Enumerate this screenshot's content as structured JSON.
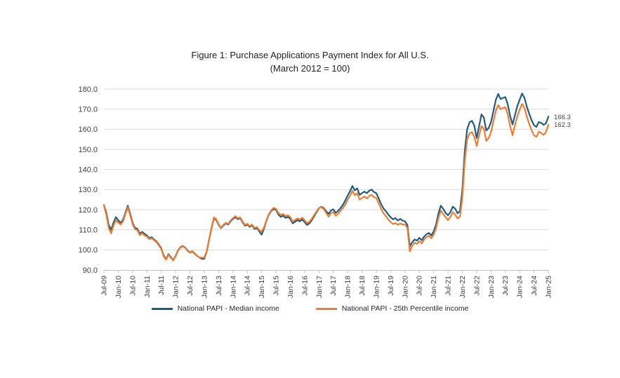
{
  "chart": {
    "title": "Figure 1: Purchase Applications Payment Index for All U.S.",
    "subtitle": "(March 2012 = 100)"
  },
  "legend": {
    "median_label": "National PAPI - Median income",
    "p25_label": "National PAPI - 25th Percentile income"
  },
  "chart_data": {
    "type": "line",
    "title": "Figure 1: Purchase Applications Payment Index for All U.S.",
    "subtitle": "(March 2012 = 100)",
    "x_unit": "monthly, Jul-2009 through Jan-2025",
    "x_tick_labels": [
      "Jul-09",
      "Jan-10",
      "Jul-10",
      "Jan-11",
      "Jul-11",
      "Jan-12",
      "Jul-12",
      "Jan-13",
      "Jul-13",
      "Jan-14",
      "Jul-14",
      "Jan-15",
      "Jul-15",
      "Jan-16",
      "Jul-16",
      "Jan-17",
      "Jul-17",
      "Jan-18",
      "Jul-18",
      "Jan-19",
      "Jul-19",
      "Jan-20",
      "Jul-20",
      "Jan-21",
      "Jul-21",
      "Jan-22",
      "Jul-22",
      "Jan-23",
      "Jul-23",
      "Jan-24",
      "Jul-24",
      "Jan-25"
    ],
    "y_tick_labels": [
      "180.0",
      "170.0",
      "160.0",
      "150.0",
      "140.0",
      "130.0",
      "120.0",
      "110.0",
      "100.0",
      "90.0"
    ],
    "ylim": [
      90,
      180
    ],
    "grid": "horizontal",
    "legend_position": "bottom",
    "axis_text_color": "#404040",
    "grid_color": "#D9D9D9",
    "axis_line_color": "#BFBFBF",
    "series": [
      {
        "name": "National PAPI - Median income",
        "color": "#1F5C80",
        "end_label": "166.3",
        "values": [
          122.3,
          118.5,
          112.5,
          110.0,
          113.5,
          116.3,
          114.8,
          113.4,
          115.0,
          118.5,
          122.0,
          118.0,
          113.5,
          111.0,
          110.5,
          108.0,
          109.0,
          108.0,
          107.2,
          105.8,
          106.3,
          105.2,
          104.2,
          102.6,
          100.8,
          97.2,
          95.4,
          97.9,
          96.4,
          94.9,
          97.0,
          99.8,
          101.3,
          102.0,
          101.2,
          99.7,
          98.8,
          99.3,
          98.2,
          97.0,
          96.2,
          95.5,
          95.6,
          99.0,
          105.0,
          110.5,
          115.8,
          114.8,
          112.5,
          110.8,
          112.2,
          113.2,
          112.6,
          114.2,
          115.4,
          116.2,
          115.3,
          115.8,
          113.8,
          112.0,
          112.6,
          111.4,
          112.2,
          110.4,
          110.9,
          109.2,
          107.6,
          110.6,
          114.5,
          117.5,
          119.3,
          120.3,
          120.0,
          117.6,
          116.4,
          117.0,
          115.9,
          116.4,
          115.4,
          113.2,
          114.0,
          114.8,
          114.2,
          115.1,
          113.8,
          112.4,
          113.2,
          114.8,
          116.8,
          118.8,
          120.8,
          121.5,
          120.8,
          119.2,
          117.9,
          119.6,
          120.2,
          118.4,
          119.4,
          120.8,
          122.4,
          124.6,
          127.0,
          129.2,
          131.8,
          129.6,
          130.6,
          127.4,
          128.2,
          129.0,
          128.2,
          129.4,
          130.0,
          128.8,
          128.2,
          125.6,
          122.8,
          120.6,
          119.2,
          117.6,
          116.2,
          115.2,
          115.8,
          114.6,
          115.4,
          114.6,
          114.2,
          112.4,
          101.8,
          103.8,
          105.2,
          104.6,
          106.0,
          104.8,
          106.6,
          107.8,
          108.4,
          107.2,
          109.2,
          112.6,
          118.2,
          122.0,
          120.4,
          118.4,
          117.2,
          118.8,
          121.5,
          120.5,
          118.2,
          119.4,
          130.0,
          149.0,
          160.0,
          163.5,
          164.2,
          161.8,
          155.6,
          161.5,
          167.4,
          165.8,
          159.4,
          160.6,
          163.6,
          169.0,
          174.6,
          177.6,
          175.0,
          175.6,
          176.0,
          172.4,
          166.5,
          162.4,
          167.0,
          171.5,
          174.8,
          177.8,
          175.6,
          171.2,
          167.6,
          164.4,
          162.0,
          161.2,
          163.6,
          163.2,
          162.2,
          163.0,
          166.3
        ]
      },
      {
        "name": "National PAPI - 25th Percentile income",
        "color": "#ED7D31",
        "end_label": "162.3",
        "values": [
          122.0,
          117.5,
          111.0,
          108.2,
          112.0,
          114.8,
          113.6,
          112.6,
          114.2,
          117.8,
          121.2,
          117.2,
          112.8,
          110.3,
          109.8,
          107.3,
          108.3,
          107.2,
          106.6,
          105.3,
          105.8,
          104.8,
          103.8,
          102.2,
          100.4,
          96.8,
          95.1,
          97.6,
          96.1,
          94.7,
          96.8,
          99.6,
          101.1,
          101.8,
          101.0,
          99.5,
          98.6,
          99.1,
          98.0,
          96.9,
          96.3,
          96.1,
          96.2,
          99.3,
          105.3,
          110.9,
          116.2,
          115.2,
          112.8,
          111.0,
          112.5,
          113.5,
          112.9,
          114.6,
          115.8,
          116.8,
          115.7,
          116.2,
          114.2,
          112.4,
          113.0,
          111.8,
          112.6,
          110.9,
          111.4,
          109.8,
          109.2,
          111.2,
          114.8,
          117.8,
          119.6,
          120.9,
          120.5,
          118.4,
          117.3,
          117.9,
          116.8,
          117.3,
          116.3,
          114.1,
          114.9,
          115.7,
          115.1,
          116.1,
          114.7,
          113.3,
          114.0,
          115.5,
          117.4,
          119.2,
          120.9,
          121.3,
          120.3,
          118.4,
          116.5,
          118.2,
          118.8,
          117.0,
          118.0,
          119.4,
          120.8,
          122.6,
          125.0,
          127.0,
          129.4,
          127.2,
          128.2,
          125.0,
          125.8,
          126.6,
          125.6,
          126.8,
          127.4,
          126.2,
          125.8,
          123.2,
          120.4,
          118.2,
          116.8,
          115.2,
          113.8,
          112.8,
          113.4,
          112.4,
          113.2,
          112.6,
          112.6,
          111.0,
          99.3,
          102.0,
          103.6,
          103.0,
          104.4,
          103.2,
          105.2,
          106.4,
          107.0,
          105.8,
          107.6,
          110.8,
          116.0,
          119.6,
          117.8,
          116.2,
          114.8,
          116.4,
          118.8,
          117.6,
          115.6,
          116.6,
          126.0,
          144.0,
          155.0,
          158.0,
          158.6,
          156.2,
          151.6,
          157.0,
          161.6,
          160.2,
          154.2,
          155.6,
          158.6,
          164.0,
          169.2,
          172.0,
          170.0,
          170.6,
          171.0,
          167.4,
          161.5,
          157.0,
          162.0,
          166.5,
          169.8,
          172.6,
          170.6,
          166.2,
          162.6,
          159.4,
          157.0,
          156.2,
          158.8,
          158.2,
          157.2,
          158.6,
          162.3
        ]
      }
    ]
  }
}
